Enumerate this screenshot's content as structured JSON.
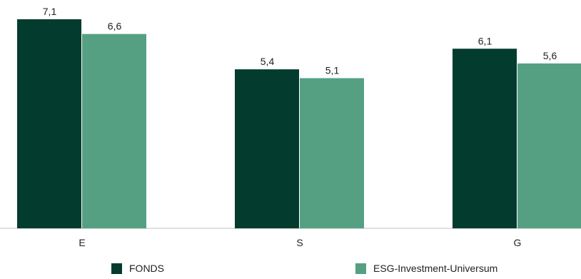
{
  "chart_data": {
    "type": "bar",
    "categories": [
      "E",
      "S",
      "G"
    ],
    "series": [
      {
        "name": "FONDS",
        "values": [
          7.1,
          5.4,
          6.1
        ],
        "labels": [
          "7,1",
          "5,4",
          "6,1"
        ],
        "color": "#033b2e"
      },
      {
        "name": "ESG-Investment-Universum",
        "values": [
          6.6,
          5.1,
          5.6
        ],
        "labels": [
          "6,6",
          "5,1",
          "5,6"
        ],
        "color": "#55a083"
      }
    ],
    "title": "",
    "xlabel": "",
    "ylabel": "",
    "ylim": [
      0,
      7.1
    ],
    "grid": false,
    "legend_position": "bottom"
  }
}
